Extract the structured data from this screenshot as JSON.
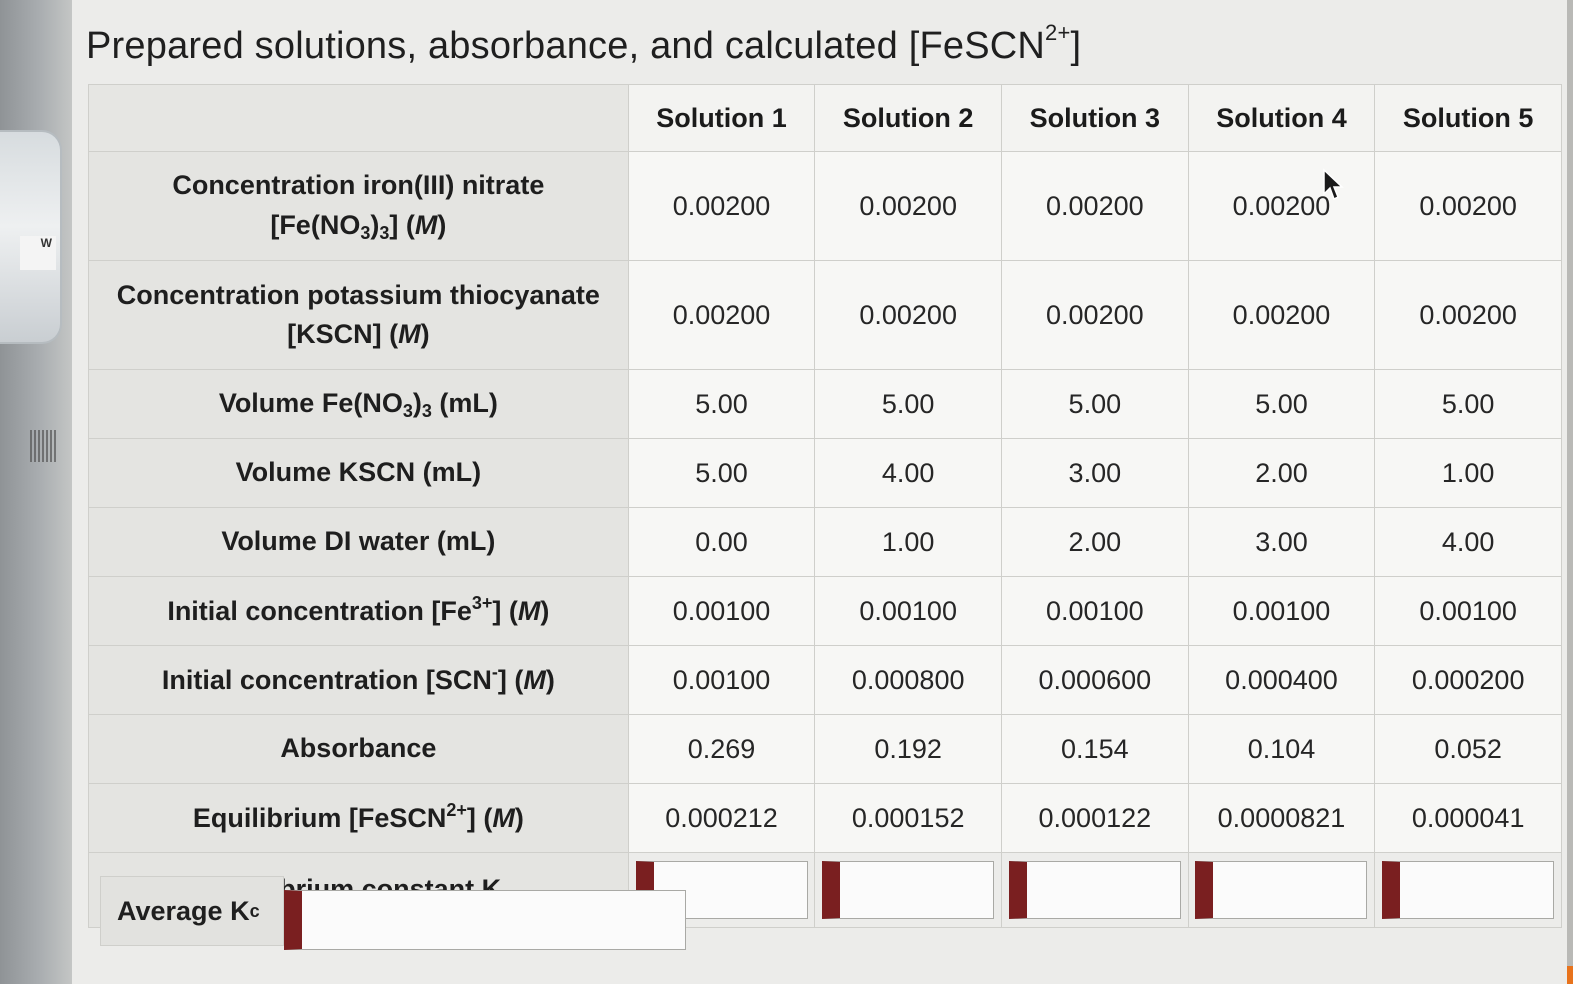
{
  "title": {
    "prefix": "Prepared solutions, absorbance, and calculated [FeSCN",
    "sup": "2+",
    "suffix": "]"
  },
  "columns": [
    "Solution 1",
    "Solution 2",
    "Solution 3",
    "Solution 4",
    "Solution 5"
  ],
  "rows": [
    {
      "label": {
        "line1": "Concentration iron(III) nitrate",
        "a": "[Fe(NO",
        "s1": "3",
        "b": ")",
        "s2": "3",
        "c": "] (",
        "unit": "M",
        "d": ")"
      },
      "values": [
        "0.00200",
        "0.00200",
        "0.00200",
        "0.00200",
        "0.00200"
      ]
    },
    {
      "label": {
        "line1": "Concentration potassium thiocyanate",
        "a": "[KSCN] (",
        "unit": "M",
        "b": ")"
      },
      "values": [
        "0.00200",
        "0.00200",
        "0.00200",
        "0.00200",
        "0.00200"
      ]
    },
    {
      "label": {
        "a": "Volume Fe(NO",
        "s1": "3",
        "b": ")",
        "s2": "3",
        "c": " (mL)"
      },
      "values": [
        "5.00",
        "5.00",
        "5.00",
        "5.00",
        "5.00"
      ]
    },
    {
      "label": {
        "text": "Volume KSCN (mL)"
      },
      "values": [
        "5.00",
        "4.00",
        "3.00",
        "2.00",
        "1.00"
      ]
    },
    {
      "label": {
        "text": "Volume DI water (mL)"
      },
      "values": [
        "0.00",
        "1.00",
        "2.00",
        "3.00",
        "4.00"
      ]
    },
    {
      "label": {
        "a": "Initial concentration [Fe",
        "sup": "3+",
        "b": "] (",
        "unit": "M",
        "c": ")"
      },
      "values": [
        "0.00100",
        "0.00100",
        "0.00100",
        "0.00100",
        "0.00100"
      ]
    },
    {
      "label": {
        "a": "Initial concentration [SCN",
        "sup": "-",
        "b": "] (",
        "unit": "M",
        "c": ")"
      },
      "values": [
        "0.00100",
        "0.000800",
        "0.000600",
        "0.000400",
        "0.000200"
      ]
    },
    {
      "label": {
        "text": "Absorbance"
      },
      "values": [
        "0.269",
        "0.192",
        "0.154",
        "0.104",
        "0.052"
      ]
    },
    {
      "label": {
        "a": "Equilibrium [FeSCN",
        "sup": "2+",
        "b": "] (",
        "unit": "M",
        "c": ")"
      },
      "values": [
        "0.000212",
        "0.000152",
        "0.000122",
        "0.0000821",
        "0.000041"
      ]
    },
    {
      "label": {
        "a": "Equilibrium constant K",
        "sub": "c"
      },
      "inputs": [
        "",
        "",
        "",
        "",
        ""
      ]
    }
  ],
  "average": {
    "label": "Average K",
    "sub": "c",
    "value": ""
  },
  "colors": {
    "input_accent": "#7a1f20",
    "header_bg": "#e4e4e1",
    "cell_bg": "#f7f7f5"
  }
}
